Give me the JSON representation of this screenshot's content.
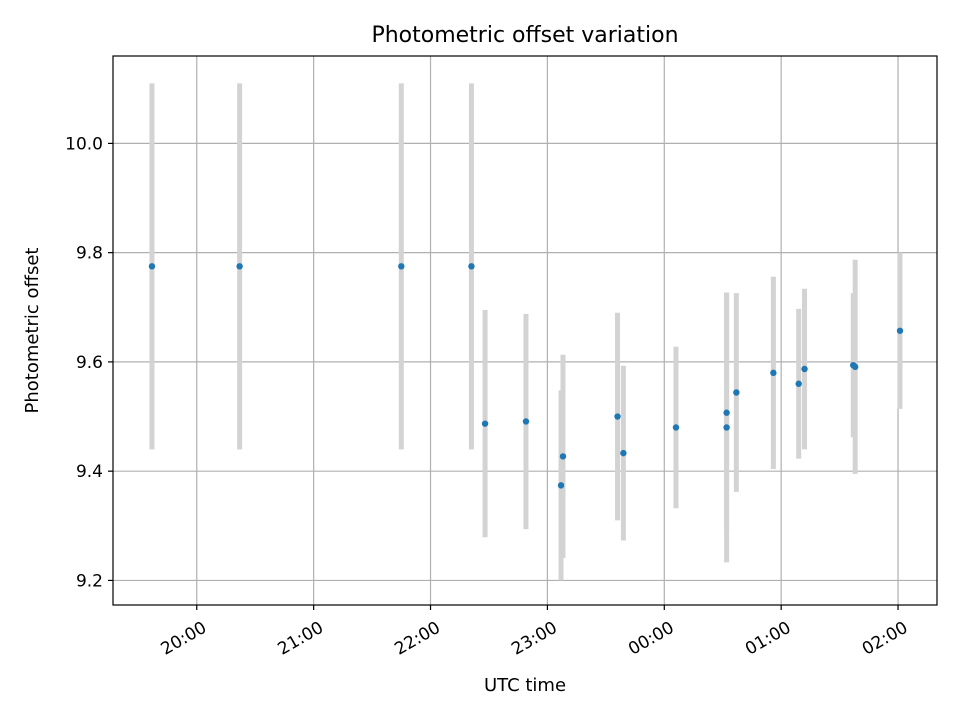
{
  "chart_data": {
    "type": "scatter",
    "title": "Photometric offset variation",
    "xlabel": "UTC time",
    "ylabel": "Photometric offset",
    "x_ticks": [
      "20:00",
      "21:00",
      "22:00",
      "23:00",
      "00:00",
      "01:00",
      "02:00"
    ],
    "y_ticks": [
      "9.2",
      "9.4",
      "9.6",
      "9.8",
      "10.0"
    ],
    "xlim": [
      "19:17",
      "02:20"
    ],
    "ylim": [
      9.155,
      10.16
    ],
    "grid": true,
    "point_color": "#1f77b4",
    "errorbar_color": "#d3d3d3",
    "series": [
      {
        "points": [
          {
            "t": "19:37",
            "y": 9.775,
            "err": 0.335
          },
          {
            "t": "20:22",
            "y": 9.775,
            "err": 0.335
          },
          {
            "t": "21:45",
            "y": 9.775,
            "err": 0.335
          },
          {
            "t": "22:21",
            "y": 9.775,
            "err": 0.335
          },
          {
            "t": "22:28",
            "y": 9.487,
            "err": 0.208
          },
          {
            "t": "22:49",
            "y": 9.491,
            "err": 0.197
          },
          {
            "t": "23:07",
            "y": 9.374,
            "err": 0.174
          },
          {
            "t": "23:08",
            "y": 9.427,
            "err": 0.186
          },
          {
            "t": "23:36",
            "y": 9.5,
            "err": 0.19
          },
          {
            "t": "23:39",
            "y": 9.433,
            "err": 0.16
          },
          {
            "t": "00:06",
            "y": 9.48,
            "err": 0.148
          },
          {
            "t": "00:32",
            "y": 9.48,
            "err": 0.247
          },
          {
            "t": "00:32",
            "y": 9.507,
            "err": 0.22
          },
          {
            "t": "00:37",
            "y": 9.544,
            "err": 0.182
          },
          {
            "t": "00:56",
            "y": 9.58,
            "err": 0.176
          },
          {
            "t": "01:09",
            "y": 9.56,
            "err": 0.137
          },
          {
            "t": "01:12",
            "y": 9.587,
            "err": 0.147
          },
          {
            "t": "01:37",
            "y": 9.594,
            "err": 0.132
          },
          {
            "t": "01:38",
            "y": 9.591,
            "err": 0.196
          },
          {
            "t": "02:01",
            "y": 9.657,
            "err": 0.143
          }
        ]
      }
    ]
  }
}
